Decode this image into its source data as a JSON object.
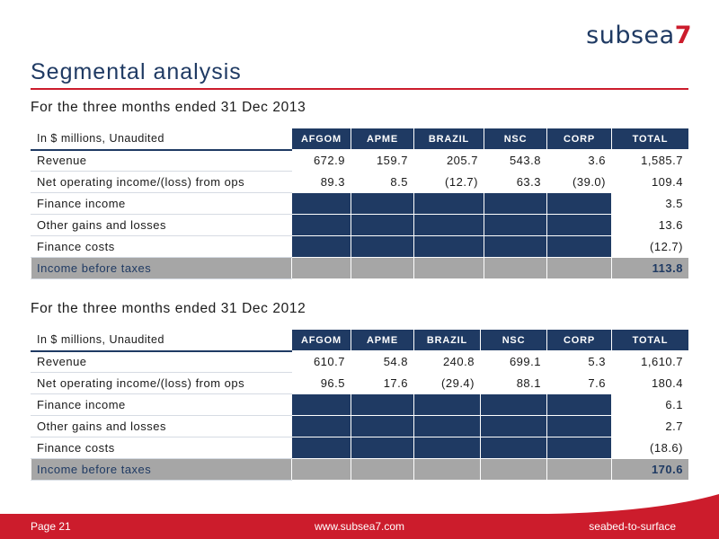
{
  "brand": {
    "name": "subsea",
    "number": "7"
  },
  "page_title": "Segmental analysis",
  "sections": [
    {
      "heading": "For the three months ended 31 Dec 2013",
      "label_header": "In $ millions, Unaudited",
      "columns": [
        "AFGOM",
        "APME",
        "BRAZIL",
        "NSC",
        "CORP",
        "TOTAL"
      ],
      "rows": [
        {
          "label": "Revenue",
          "values": [
            "672.9",
            "159.7",
            "205.7",
            "543.8",
            "3.6"
          ],
          "total": "1,585.7"
        },
        {
          "label": "Net operating income/(loss) from ops",
          "values": [
            "89.3",
            "8.5",
            "(12.7)",
            "63.3",
            "(39.0)"
          ],
          "total": "109.4"
        },
        {
          "label": "Finance income",
          "values": [],
          "total": "3.5"
        },
        {
          "label": "Other gains and losses",
          "values": [],
          "total": "13.6"
        },
        {
          "label": "Finance costs",
          "values": [],
          "total": "(12.7)"
        },
        {
          "label": "Income before taxes",
          "values": [],
          "total": "113.8",
          "summary": true
        }
      ]
    },
    {
      "heading": "For the three months ended 31 Dec 2012",
      "label_header": "In $ millions, Unaudited",
      "columns": [
        "AFGOM",
        "APME",
        "BRAZIL",
        "NSC",
        "CORP",
        "TOTAL"
      ],
      "rows": [
        {
          "label": "Revenue",
          "values": [
            "610.7",
            "54.8",
            "240.8",
            "699.1",
            "5.3"
          ],
          "total": "1,610.7"
        },
        {
          "label": "Net operating income/(loss) from ops",
          "values": [
            "96.5",
            "17.6",
            "(29.4)",
            "88.1",
            "7.6"
          ],
          "total": "180.4"
        },
        {
          "label": "Finance income",
          "values": [],
          "total": "6.1"
        },
        {
          "label": "Other gains and losses",
          "values": [],
          "total": "2.7"
        },
        {
          "label": "Finance costs",
          "values": [],
          "total": "(18.6)"
        },
        {
          "label": "Income before taxes",
          "values": [],
          "total": "170.6",
          "summary": true
        }
      ]
    }
  ],
  "footer": {
    "page": "Page  21",
    "url": "www.subsea7.com",
    "tagline": "seabed-to-surface"
  },
  "colors": {
    "navy": "#1f3a63",
    "red": "#cc1c2c",
    "summary_grey": "#a6a6a6"
  }
}
